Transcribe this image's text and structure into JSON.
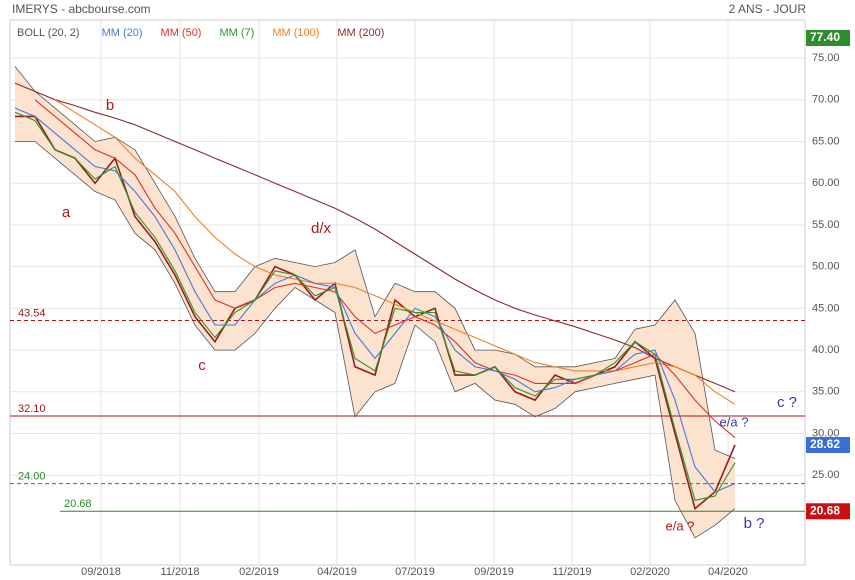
{
  "chart_data": {
    "type": "line",
    "title": "IMERYS - abcbourse.com",
    "subtitle": "2 ANS - JOUR",
    "x": [
      0,
      2,
      4,
      6,
      8,
      10,
      12,
      14,
      16,
      18,
      20,
      22,
      24,
      26,
      28,
      30,
      32,
      34,
      36,
      38,
      40,
      42,
      44,
      46,
      48,
      50,
      52,
      54,
      56,
      58,
      60,
      62,
      64,
      66,
      68,
      70,
      72
    ],
    "xlim": [
      0,
      79
    ],
    "xticks": [
      {
        "value": 8.6,
        "label": "09/2018"
      },
      {
        "value": 16.5,
        "label": "11/2018"
      },
      {
        "value": 24.4,
        "label": "02/2019"
      },
      {
        "value": 32.2,
        "label": "04/2019"
      },
      {
        "value": 40,
        "label": "07/2019"
      },
      {
        "value": 47.9,
        "label": "09/2019"
      },
      {
        "value": 55.7,
        "label": "11/2019"
      },
      {
        "value": 63.5,
        "label": "02/2020"
      },
      {
        "value": 71.3,
        "label": "04/2020"
      }
    ],
    "ylim": [
      14,
      78
    ],
    "yticks": [
      {
        "value": 25,
        "label": "25.00"
      },
      {
        "value": 30,
        "label": "30.00"
      },
      {
        "value": 35,
        "label": "35.00"
      },
      {
        "value": 40,
        "label": "40.00"
      },
      {
        "value": 45,
        "label": "45.00"
      },
      {
        "value": 50,
        "label": "50.00"
      },
      {
        "value": 55,
        "label": "55.00"
      },
      {
        "value": 60,
        "label": "60.00"
      },
      {
        "value": 65,
        "label": "65.00"
      },
      {
        "value": 70,
        "label": "70.00"
      },
      {
        "value": 75,
        "label": "75.00"
      }
    ],
    "grid": true,
    "price": {
      "color": "#9b1c1c",
      "values": [
        68,
        68,
        64,
        63,
        60,
        63,
        56,
        53,
        49,
        44,
        41,
        45,
        46,
        50,
        49,
        46,
        48,
        38,
        37,
        46,
        44,
        45,
        37,
        37,
        38,
        35,
        34,
        37,
        36,
        37,
        38,
        41,
        39,
        30,
        21,
        23,
        28.62
      ]
    },
    "bollinger": {
      "name": "BOLL (20, 2)",
      "color": "#555555",
      "fill": "#fbe3cf",
      "upper": [
        74,
        71,
        69,
        67,
        65,
        65.5,
        64,
        60,
        56,
        51,
        47,
        47,
        50,
        51,
        50.5,
        50,
        50.5,
        52,
        44,
        48,
        47,
        47,
        45,
        40,
        40,
        39.5,
        38,
        38,
        38,
        38.5,
        39,
        42.5,
        43,
        46,
        42,
        28,
        27
      ],
      "lower": [
        65,
        65,
        63,
        61,
        59,
        58,
        54,
        52,
        48,
        43,
        40,
        40,
        42,
        45,
        47.5,
        46,
        44.5,
        32,
        35,
        36,
        43,
        41,
        35,
        36,
        34,
        33.5,
        32,
        33,
        35,
        35.5,
        36,
        36.5,
        37,
        22,
        17.5,
        19,
        21
      ]
    },
    "series": [
      {
        "name": "MM (20)",
        "color": "#4a78d8",
        "values": [
          69,
          68,
          66,
          64,
          62,
          61.5,
          59,
          56,
          52,
          47,
          43,
          43,
          46,
          48,
          49,
          48,
          47.5,
          42,
          39,
          42,
          45,
          44,
          40,
          38,
          37.5,
          36.5,
          35,
          35.5,
          36.5,
          37,
          37.5,
          39.5,
          40,
          34,
          26,
          23,
          24
        ]
      },
      {
        "name": "MM (50)",
        "color": "#e03030",
        "values": [
          null,
          70,
          68,
          66,
          64,
          63,
          61,
          57,
          54,
          50,
          46,
          45,
          46,
          47.5,
          48,
          47.5,
          47,
          44,
          42,
          43,
          44,
          43,
          41,
          38.5,
          37.5,
          37,
          36,
          36,
          36,
          37,
          37.5,
          38.5,
          39.5,
          37,
          34,
          31.5,
          29.5
        ]
      },
      {
        "name": "MM (7)",
        "color": "#2a9a2a",
        "values": [
          68.5,
          67.5,
          64,
          63,
          60.5,
          62,
          56.5,
          53.5,
          49.5,
          44.5,
          41.5,
          44.5,
          46,
          49.5,
          49,
          46.5,
          47.5,
          39,
          37.5,
          45,
          44.5,
          44.5,
          37.5,
          37,
          38,
          35.5,
          34.5,
          36.5,
          36.5,
          37,
          38.5,
          41,
          39.5,
          30.5,
          22,
          22.5,
          26.5
        ]
      },
      {
        "name": "MM (100)",
        "color": "#f08020",
        "values": [
          null,
          null,
          70,
          68.5,
          67,
          65.5,
          63,
          61,
          59,
          56,
          53.5,
          51.5,
          50,
          49,
          48.5,
          48,
          48,
          47.5,
          46.5,
          45.5,
          44.5,
          43.5,
          42.5,
          41.5,
          40.5,
          39.5,
          38.5,
          38,
          37.5,
          37.5,
          37.5,
          38,
          38.5,
          38,
          37,
          35,
          33.5
        ]
      },
      {
        "name": "MM (200)",
        "color": "#8b2a2a",
        "values": [
          72,
          71,
          70,
          69.3,
          68.5,
          67.8,
          67,
          66,
          65,
          64,
          63,
          62,
          61,
          60,
          59,
          58,
          57,
          55.8,
          54.5,
          53,
          51.5,
          50,
          48.5,
          47.2,
          46,
          45,
          44.2,
          43.5,
          42.8,
          42,
          41.2,
          40.3,
          39,
          38,
          37,
          36,
          35
        ]
      }
    ],
    "levels": [
      {
        "value": 43.54,
        "color": "#a01818",
        "dashed": true
      },
      {
        "value": 32.1,
        "label": "32.10",
        "color": "#a01818",
        "dashed": false
      },
      {
        "value": 24,
        "label": "24.00",
        "color": "#2a8a2a",
        "dashed": true
      },
      {
        "value": 20.68,
        "color": "#2a8a2a",
        "dashed": false
      }
    ],
    "price_tags": [
      {
        "value": 77.4,
        "label": "77.40",
        "color": "#2e8b2e"
      },
      {
        "value": 28.62,
        "color": "#3a6fd8"
      },
      {
        "value": 20.68,
        "color": "#c81010"
      }
    ],
    "annotations": [
      {
        "text": "a",
        "color": "#b01818"
      },
      {
        "text": "b",
        "color": "#b01818"
      },
      {
        "text": "c",
        "color": "#b01818"
      },
      {
        "text": "d/x",
        "color": "#b01818"
      },
      {
        "text": "e/a ?",
        "color": "#3a3aa0"
      },
      {
        "text": "c ?",
        "color": "#3a3aa0"
      },
      {
        "text": "e/a ?",
        "color": "#b01818"
      },
      {
        "text": "b ?",
        "color": "#3a3aa0"
      }
    ]
  }
}
